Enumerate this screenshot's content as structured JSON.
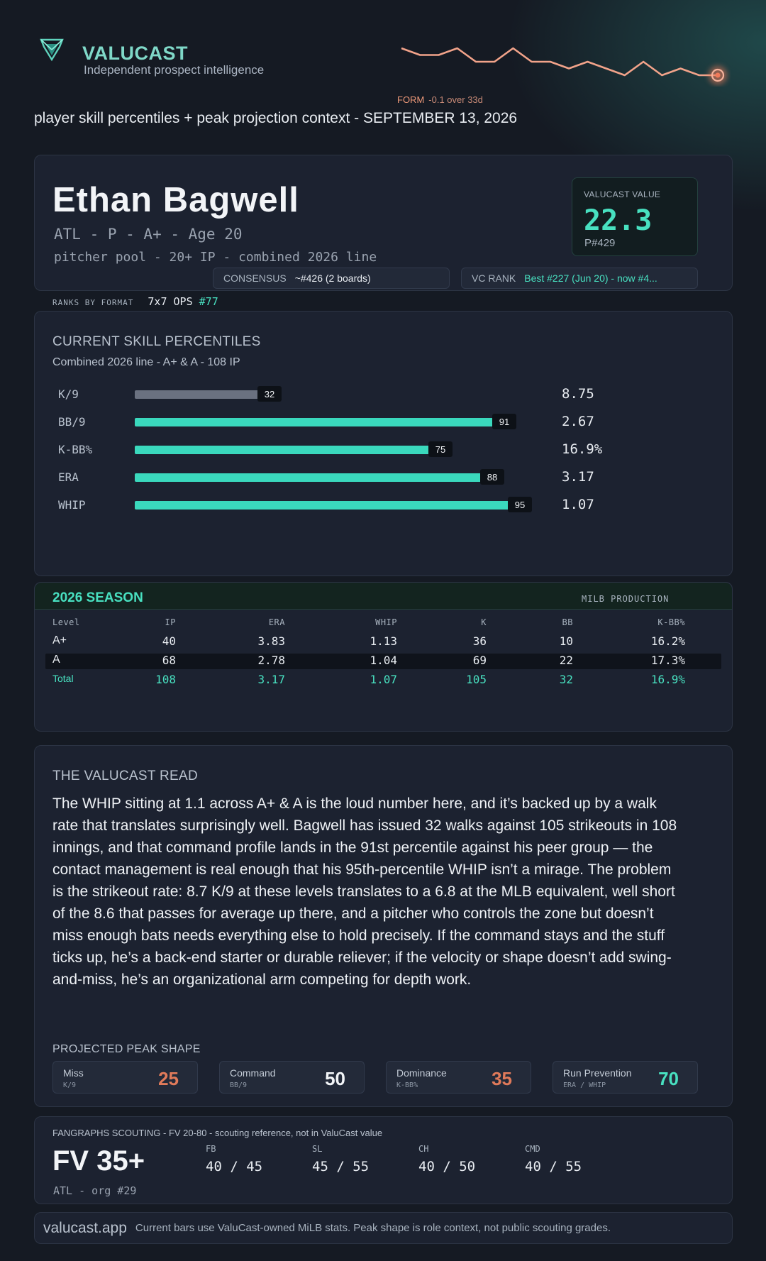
{
  "header": {
    "logo_icon": "valucast-diamond-icon",
    "brand": "VALUCAST",
    "tagline": "Independent prospect intelligence",
    "form_label": "FORM",
    "form_delta": "-0.1 over 33d",
    "form_series": [
      6,
      5,
      5,
      6,
      4,
      4,
      6,
      4,
      4,
      3,
      4,
      3,
      2,
      4,
      2,
      3,
      2,
      2
    ],
    "subtitle": "player skill percentiles + peak projection context - SEPTEMBER 13, 2026"
  },
  "player": {
    "name": "Ethan Bagwell",
    "meta": "ATL - P - A+ - Age 20",
    "pool": "pitcher pool - 20+ IP - combined 2026 line",
    "value_label": "VALUCAST VALUE",
    "value": "22.3",
    "value_rank": "P#429",
    "consensus_label": "CONSENSUS",
    "consensus_value": "~#426 (2 boards)",
    "vc_rank_label": "VC RANK",
    "vc_rank_value": "Best #227 (Jun 20) - now #4..."
  },
  "ranks": {
    "label": "RANKS BY FORMAT",
    "format": "7x7 OPS",
    "format_rank": "#77"
  },
  "percentiles": {
    "title": "CURRENT SKILL PERCENTILES",
    "subtitle": "Combined 2026 line - A+ & A - 108 IP",
    "rows": [
      {
        "label": "K/9",
        "pct": 32,
        "value": "8.75",
        "color": "#6a7180"
      },
      {
        "label": "BB/9",
        "pct": 91,
        "value": "2.67",
        "color": "#3ad9bd"
      },
      {
        "label": "K-BB%",
        "pct": 75,
        "value": "16.9%",
        "color": "#3ad9bd"
      },
      {
        "label": "ERA",
        "pct": 88,
        "value": "3.17",
        "color": "#3ad9bd"
      },
      {
        "label": "WHIP",
        "pct": 95,
        "value": "1.07",
        "color": "#3ad9bd"
      }
    ]
  },
  "season": {
    "title": "2026 SEASON",
    "tag": "MILB PRODUCTION",
    "columns": [
      "Level",
      "IP",
      "ERA",
      "WHIP",
      "K",
      "BB",
      "K-BB%"
    ],
    "rows": [
      [
        "A+",
        "40",
        "3.83",
        "1.13",
        "36",
        "10",
        "16.2%"
      ],
      [
        "A",
        "68",
        "2.78",
        "1.04",
        "69",
        "22",
        "17.3%"
      ],
      [
        "Total",
        "108",
        "3.17",
        "1.07",
        "105",
        "32",
        "16.9%"
      ]
    ]
  },
  "read": {
    "title": "THE VALUCAST READ",
    "body": "The WHIP sitting at 1.1 across A+ & A is the loud number here, and it’s backed up by a walk rate that translates surprisingly well. Bagwell has issued 32 walks against 105 strikeouts in 108 innings, and that command profile lands in the 91st percentile against his peer group — the contact management is real enough that his 95th-percentile WHIP isn’t a mirage. The problem is the strikeout rate: 8.7 K/9 at these levels translates to a 6.8 at the MLB equivalent, well short of the 8.6 that passes for average up there, and a pitcher who controls the zone but doesn’t miss enough bats needs everything else to hold precisely. If the command stays and the stuff ticks up, he’s a back-end starter or durable reliever; if the velocity or shape doesn’t add swing-and-miss, he’s an organizational arm competing for depth work.",
    "peak_title": "PROJECTED PEAK SHAPE",
    "peak": [
      {
        "name": "Miss",
        "sub": "K/9",
        "value": "25",
        "color": "#e07a5a"
      },
      {
        "name": "Command",
        "sub": "BB/9",
        "value": "50",
        "color": "#f2f4f7"
      },
      {
        "name": "Dominance",
        "sub": "K-BB%",
        "value": "35",
        "color": "#e07a5a"
      },
      {
        "name": "Run Prevention",
        "sub": "ERA / WHIP",
        "value": "70",
        "color": "#48e0c0"
      }
    ]
  },
  "fangraphs": {
    "title": "FANGRAPHS SCOUTING - FV 20-80 - scouting reference, not in ValuCast value",
    "fv": "FV 35+",
    "org": "ATL - org #29",
    "grades": [
      {
        "label": "FB",
        "value": "40 / 45"
      },
      {
        "label": "SL",
        "value": "45 / 55"
      },
      {
        "label": "CH",
        "value": "40 / 50"
      },
      {
        "label": "CMD",
        "value": "40 / 55"
      }
    ]
  },
  "footer": {
    "site": "valucast.app",
    "note": "Current bars use ValuCast-owned MiLB stats. Peak shape is role context, not public scouting grades."
  }
}
